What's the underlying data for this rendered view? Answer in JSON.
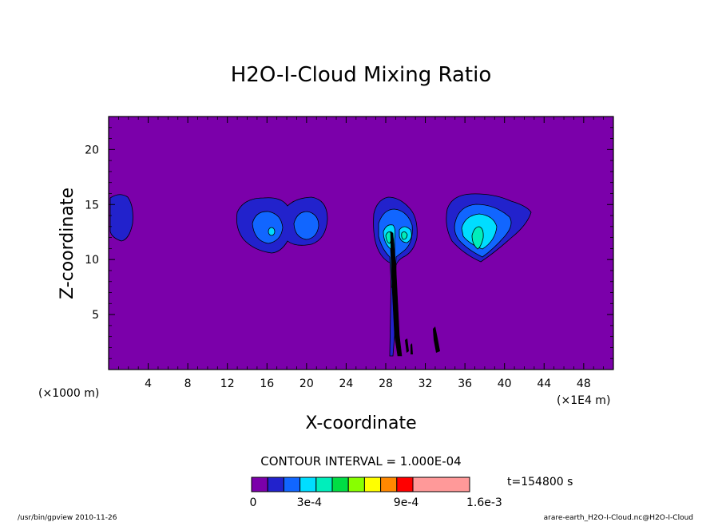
{
  "chart_data": {
    "type": "contour",
    "title": "H2O-I-Cloud Mixing Ratio",
    "xlabel": "X-coordinate",
    "ylabel": "Z-coordinate",
    "x_unit": "(×1E4 m)",
    "y_unit": "(×1000 m)",
    "xlim": [
      0,
      51
    ],
    "ylim": [
      0,
      23
    ],
    "x_ticks": [
      4,
      8,
      12,
      16,
      20,
      24,
      28,
      32,
      36,
      40,
      44,
      48
    ],
    "y_ticks": [
      5,
      10,
      15,
      20
    ],
    "background_color": "#7b00aa",
    "contour_interval": "CONTOUR INTERVAL = 1.000E-04",
    "time_label": "t=154800 s",
    "colorbar": {
      "colors": [
        "#7b00aa",
        "#2222cc",
        "#1166ff",
        "#00ddff",
        "#00eebb",
        "#00dd44",
        "#88ff00",
        "#ffff00",
        "#ff8800",
        "#ff0000",
        "#ff9999"
      ],
      "labels": [
        "0",
        "3e-4",
        "9e-4",
        "1.6e-3"
      ],
      "label_values": [
        0,
        0.0003,
        0.0009,
        0.0016
      ]
    },
    "cloud_regions": [
      {
        "x": 1.3,
        "z": 14.0,
        "peak": 0.0001
      },
      {
        "x": 16.5,
        "z": 12.5,
        "peak": 0.0004
      },
      {
        "x": 20.0,
        "z": 13.0,
        "peak": 0.0003
      },
      {
        "x": 29.5,
        "z": 12.0,
        "peak": 0.0005
      },
      {
        "x": 37.5,
        "z": 12.0,
        "peak": 0.0005
      }
    ]
  },
  "footer": {
    "left": "/usr/bin/gpview  2010-11-26",
    "right": "arare-earth_H2O-I-Cloud.nc@H2O-I-Cloud"
  }
}
